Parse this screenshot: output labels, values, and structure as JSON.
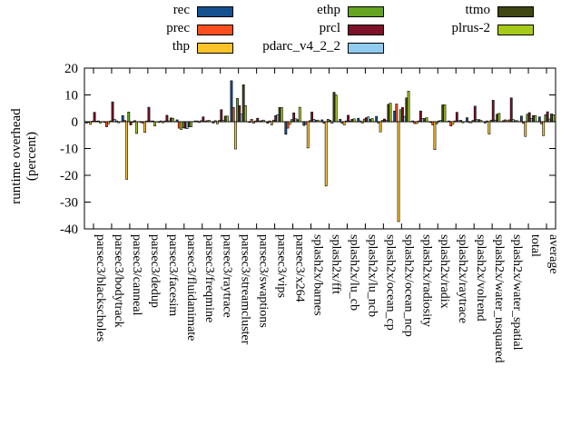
{
  "figure": {
    "ylabel_line1": "runtime overhead",
    "ylabel_line2": "(percent)"
  },
  "chart_data": {
    "type": "bar",
    "title": "",
    "xlabel": "",
    "ylabel": "runtime overhead (percent)",
    "ylim": [
      -40,
      20
    ],
    "ytick_step": 10,
    "yticks": [
      -40,
      -30,
      -20,
      -10,
      0,
      10,
      20
    ],
    "grid": false,
    "legend_position": "top",
    "background": "#ffffff",
    "categories": [
      "parsec3/blackscholes",
      "parsec3/bodytrack",
      "parsec3/canneal",
      "parsec3/dedup",
      "parsec3/facesim",
      "parsec3/fluidanimate",
      "parsec3/freqmine",
      "parsec3/raytrace",
      "parsec3/streamcluster",
      "parsec3/swaptions",
      "parsec3/vips",
      "parsec3/x264",
      "splash2x/barnes",
      "splash2x/fft",
      "splash2x/lu_cb",
      "splash2x/lu_ncb",
      "splash2x/ocean_cp",
      "splash2x/ocean_ncp",
      "splash2x/radiosity",
      "splash2x/radix",
      "splash2x/raytrace",
      "splash2x/volrend",
      "splash2x/water_nsquared",
      "splash2x/water_spatial",
      "total",
      "average"
    ],
    "series": [
      {
        "name": "rec",
        "color": "#15518f",
        "values": [
          -0.5,
          -0.3,
          2.3,
          -0.3,
          -0.3,
          0.7,
          0.3,
          -0.5,
          15.3,
          -0.3,
          -0.6,
          -4.7,
          -1.4,
          0.7,
          0.9,
          1.3,
          2.0,
          4.0,
          0.3,
          -0.3,
          0.3,
          1.5,
          -0.5,
          0.4,
          2.1,
          1.8
        ]
      },
      {
        "name": "prec",
        "color": "#fc4f1e",
        "values": [
          -0.3,
          -1.9,
          0.5,
          -0.5,
          0.3,
          -2.4,
          0.3,
          0.4,
          5.3,
          0.9,
          0.3,
          -2.4,
          -1.0,
          -0.6,
          -0.6,
          0.3,
          -0.5,
          6.6,
          -0.7,
          -1.2,
          -1.6,
          -0.3,
          0.3,
          0.7,
          -0.6,
          -0.8
        ]
      },
      {
        "name": "thp",
        "color": "#fdc42a",
        "values": [
          -1.0,
          -0.8,
          -21.5,
          -4.0,
          -0.4,
          -2.9,
          -0.3,
          -0.8,
          -10.2,
          -0.6,
          -1.2,
          -1.0,
          -9.8,
          -24.0,
          -1.2,
          -0.5,
          -3.8,
          -37.3,
          -0.7,
          -10.4,
          -1.0,
          -0.4,
          -4.6,
          0.4,
          -5.5,
          -5.2
        ]
      },
      {
        "name": "ethp",
        "color": "#64a41f",
        "values": [
          0.2,
          0.3,
          3.6,
          0.3,
          0.3,
          -2.3,
          0.4,
          0.5,
          8.7,
          0.3,
          0.6,
          0.8,
          0.4,
          0.9,
          0.3,
          1.0,
          0.5,
          4.5,
          0.3,
          -0.8,
          0.3,
          0.5,
          0.6,
          0.7,
          2.8,
          2.6
        ]
      },
      {
        "name": "prcl",
        "color": "#7c1128",
        "values": [
          3.5,
          7.4,
          -1.2,
          5.4,
          2.4,
          -2.4,
          1.8,
          4.5,
          6.0,
          1.3,
          2.3,
          3.3,
          3.6,
          0.5,
          2.4,
          1.5,
          1.0,
          5.3,
          4.0,
          0.3,
          3.5,
          5.8,
          8.0,
          8.9,
          3.4,
          3.7
        ]
      },
      {
        "name": "pdarc_v4_2_2",
        "color": "#90ccf0",
        "values": [
          0.2,
          0.9,
          -0.3,
          0.3,
          0.3,
          -2.6,
          0.2,
          0.5,
          2.8,
          0.3,
          2.6,
          1.1,
          0.9,
          -0.6,
          0.3,
          1.8,
          0.5,
          2.0,
          1.2,
          0.5,
          0.4,
          0.8,
          0.6,
          0.8,
          1.2,
          1.0
        ]
      },
      {
        "name": "ttmo",
        "color": "#3f4513",
        "values": [
          0.3,
          0.3,
          0.4,
          0.3,
          1.4,
          -1.9,
          0.4,
          2.1,
          13.8,
          0.4,
          5.3,
          0.8,
          0.5,
          11.0,
          0.9,
          0.9,
          6.5,
          8.9,
          1.2,
          6.3,
          0.5,
          0.8,
          2.8,
          0.4,
          2.3,
          2.9
        ]
      },
      {
        "name": "plrus-2",
        "color": "#a6ca18",
        "values": [
          -0.5,
          -0.4,
          -4.4,
          -1.6,
          1.3,
          -1.9,
          0.5,
          2.1,
          6.0,
          0.6,
          5.3,
          5.4,
          0.6,
          10.0,
          1.1,
          1.2,
          6.9,
          11.4,
          1.5,
          6.3,
          -0.4,
          0.5,
          3.1,
          0.4,
          2.3,
          2.6
        ]
      }
    ]
  }
}
